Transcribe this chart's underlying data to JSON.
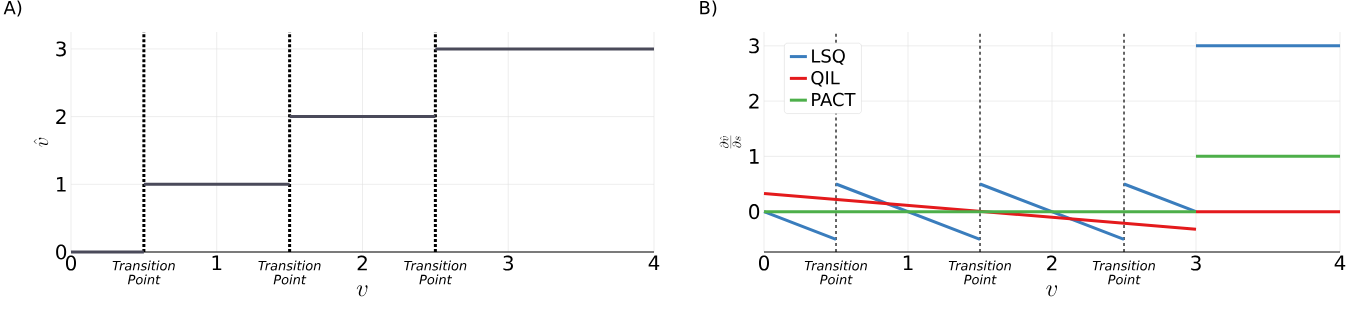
{
  "chart_data": [
    {
      "type": "line",
      "title": "A)",
      "xlabel": "v",
      "ylabel": "\\hat{v}",
      "xlim": [
        0,
        4
      ],
      "ylim": [
        0,
        3.25
      ],
      "xticks": [
        0,
        1,
        2,
        3,
        4
      ],
      "yticks": [
        0,
        1,
        2,
        3
      ],
      "grid": true,
      "series": [
        {
          "color": "#4a4a5a",
          "x": [
            0,
            0.5,
            null,
            0.5,
            1.5,
            null,
            1.5,
            2.5,
            null,
            2.5,
            4
          ],
          "values": [
            0,
            0,
            null,
            1,
            1,
            null,
            2,
            2,
            null,
            3,
            3
          ]
        }
      ],
      "ref_lines": [
        {
          "axis": "x",
          "value": 0.5,
          "label": "Transition Point",
          "color": "#000000",
          "line_style": "dotted"
        },
        {
          "axis": "x",
          "value": 1.5,
          "label": "Transition Point",
          "color": "#000000",
          "line_style": "dotted"
        },
        {
          "axis": "x",
          "value": 2.5,
          "label": "Transition Point",
          "color": "#000000",
          "line_style": "dotted"
        }
      ]
    },
    {
      "type": "line",
      "title": "B)",
      "xlabel": "v",
      "ylabel": "\\frac{\\partial \\hat{v}}{\\partial s}",
      "xlim": [
        0,
        4
      ],
      "ylim": [
        -0.73,
        3.25
      ],
      "xticks": [
        0,
        1,
        2,
        3,
        4
      ],
      "yticks": [
        0,
        1,
        2,
        3
      ],
      "grid": true,
      "legend": "top left",
      "series": [
        {
          "name": "LSQ",
          "color": "#3a7dbd",
          "x": [
            0,
            0.5,
            null,
            0.5,
            1.5,
            null,
            1.5,
            2.5,
            null,
            2.5,
            3,
            null,
            3,
            4
          ],
          "values": [
            0,
            -0.5,
            null,
            0.5,
            -0.5,
            null,
            0.5,
            -0.5,
            null,
            0.5,
            0,
            null,
            3,
            3
          ]
        },
        {
          "name": "QIL",
          "color": "#e41a1c",
          "x": [
            0,
            3,
            null,
            3,
            4
          ],
          "values": [
            0.33,
            -0.32,
            null,
            0,
            0
          ]
        },
        {
          "name": "PACT",
          "color": "#4daf4a",
          "x": [
            0,
            3,
            null,
            3,
            4
          ],
          "values": [
            0,
            0,
            null,
            1,
            1
          ]
        }
      ],
      "ref_lines": [
        {
          "axis": "x",
          "value": 0.5,
          "label": "Transition Point",
          "color": "#000000",
          "line_style": "dashed"
        },
        {
          "axis": "x",
          "value": 1.5,
          "label": "Transition Point",
          "color": "#000000",
          "line_style": "dashed"
        },
        {
          "axis": "x",
          "value": 2.5,
          "label": "Transition Point",
          "color": "#000000",
          "line_style": "dashed"
        }
      ]
    }
  ]
}
